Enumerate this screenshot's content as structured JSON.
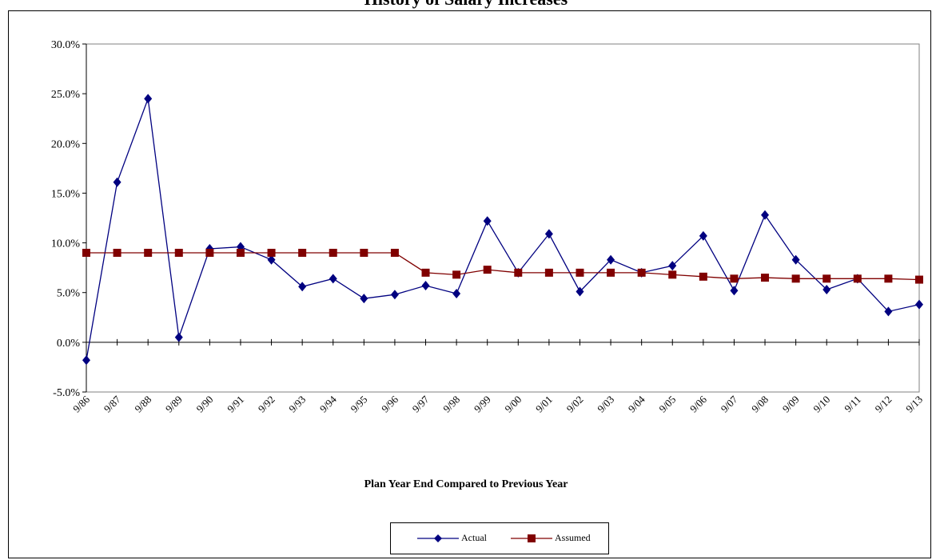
{
  "chart_data": {
    "type": "line",
    "title": "History of Salary Increases",
    "xlabel": "Plan Year  End Compared to Previous Year",
    "ylabel": "",
    "ylim": [
      -5,
      30
    ],
    "yticks": [
      "-5.0%",
      "0.0%",
      "5.0%",
      "10.0%",
      "15.0%",
      "20.0%",
      "25.0%",
      "30.0%"
    ],
    "ytick_values": [
      -5,
      0,
      5,
      10,
      15,
      20,
      25,
      30
    ],
    "categories": [
      "9/86",
      "9/87",
      "9/88",
      "9/89",
      "9/90",
      "9/91",
      "9/92",
      "9/93",
      "9/94",
      "9/95",
      "9/96",
      "9/97",
      "9/98",
      "9/99",
      "9/00",
      "9/01",
      "9/02",
      "9/03",
      "9/04",
      "9/05",
      "9/06",
      "9/07",
      "9/08",
      "9/09",
      "9/10",
      "9/11",
      "9/12",
      "9/13"
    ],
    "series": [
      {
        "name": "Actual",
        "color": "#000080",
        "marker": "diamond",
        "values": [
          -1.8,
          16.1,
          24.5,
          0.5,
          9.4,
          9.6,
          8.3,
          5.6,
          6.4,
          4.4,
          4.8,
          5.7,
          4.9,
          12.2,
          7.0,
          10.9,
          5.1,
          8.3,
          7.0,
          7.7,
          10.7,
          5.2,
          12.8,
          8.3,
          5.3,
          6.4,
          3.1,
          3.8
        ]
      },
      {
        "name": "Assumed",
        "color": "#800000",
        "marker": "square",
        "values": [
          9.0,
          9.0,
          9.0,
          9.0,
          9.0,
          9.0,
          9.0,
          9.0,
          9.0,
          9.0,
          9.0,
          7.0,
          6.8,
          7.3,
          7.0,
          7.0,
          7.0,
          7.0,
          7.0,
          6.8,
          6.6,
          6.4,
          6.5,
          6.4,
          6.4,
          6.4,
          6.4,
          6.3
        ]
      }
    ],
    "grid": false,
    "legend_position": "bottom-center"
  }
}
